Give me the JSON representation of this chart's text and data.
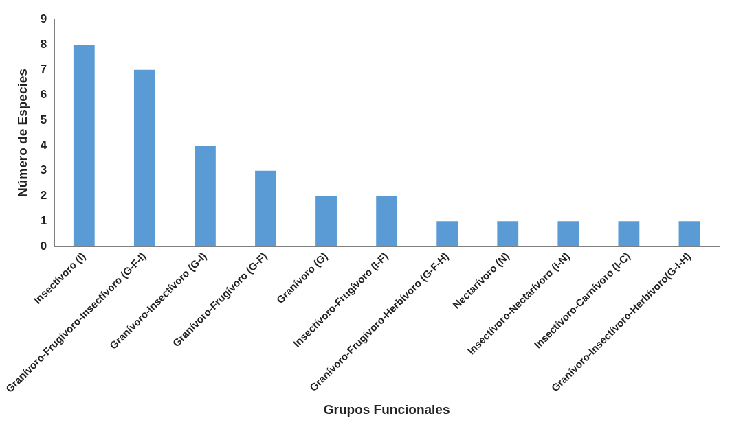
{
  "chart_data": {
    "type": "bar",
    "xlabel": "Grupos Funcionales",
    "ylabel": "Número de Especies",
    "categories": [
      "Insectívoro (I)",
      "Granívoro-Frugívoro-Insectívoro (G-F-I)",
      "Granívoro-Insectívoro (G-I)",
      "Granívoro-Frugívoro (G-F)",
      "Granívoro (G)",
      "Insectívoro-Frugívoro (I-F)",
      "Granívoro-Frugívoro-Herbívoro (G-F-H)",
      "Nectarívoro (N)",
      "Insectívoro-Nectarívoro (I-N)",
      "Insectívoro-Carnívoro (I-C)",
      "Granívoro-Insectívoro-Herbívoro(G-I-H)"
    ],
    "values": [
      8,
      7,
      4,
      3,
      2,
      2,
      1,
      1,
      1,
      1,
      1
    ],
    "color": "#5b9bd5",
    "ylim": [
      0,
      9
    ],
    "yticks": [
      0,
      1,
      2,
      3,
      4,
      5,
      6,
      7,
      8,
      9
    ],
    "grid": false,
    "legend": false
  }
}
